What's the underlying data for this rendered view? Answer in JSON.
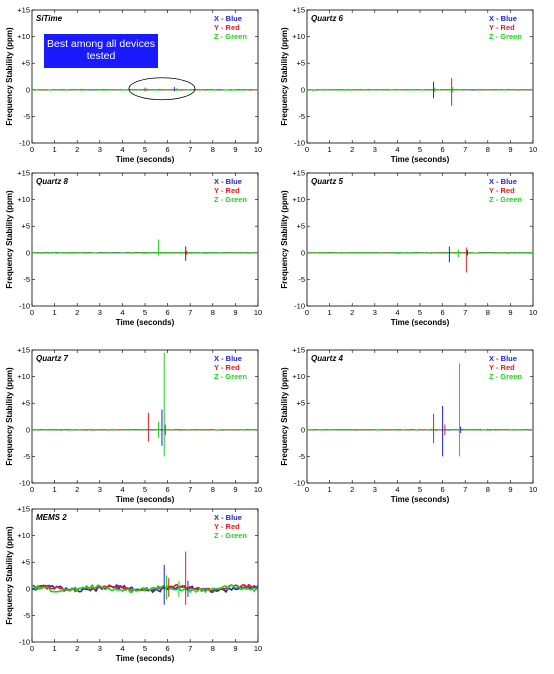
{
  "chart_data": [
    {
      "type": "line",
      "title": "SiTime",
      "xlabel": "Time (seconds)",
      "ylabel": "Frequency Stability (ppm)",
      "xlim": [
        0,
        10
      ],
      "ylim": [
        -10,
        15
      ],
      "xticks": [
        "0",
        "1",
        "2",
        "3",
        "4",
        "5",
        "6",
        "7",
        "8",
        "9",
        "10"
      ],
      "yticks": [
        "+15",
        "+10",
        "+5",
        "0",
        "-5",
        "-10"
      ],
      "legend": [
        {
          "name": "X - Blue",
          "color": "#1f1fe0"
        },
        {
          "name": "Y - Red",
          "color": "#e01f1f"
        },
        {
          "name": "Z - Green",
          "color": "#1fd21f"
        }
      ],
      "annotation": "Best among all devices tested",
      "spikes": [
        [
          5.0,
          -0.3,
          0.4,
          "#e01f1f"
        ],
        [
          5.1,
          -0.2,
          0.3,
          "#1fd21f"
        ],
        [
          6.3,
          -0.3,
          0.5,
          "#1f1fe0"
        ],
        [
          6.4,
          -0.2,
          0.3,
          "#1fd21f"
        ]
      ]
    },
    {
      "type": "line",
      "title": "Quartz 6",
      "xlabel": "Time (seconds)",
      "ylabel": "Frequency Stability (ppm)",
      "xlim": [
        0,
        10
      ],
      "ylim": [
        -10,
        15
      ],
      "xticks": [
        "0",
        "1",
        "2",
        "3",
        "4",
        "5",
        "6",
        "7",
        "8",
        "9",
        "10"
      ],
      "yticks": [
        "+15",
        "+10",
        "+5",
        "0",
        "-5",
        "-10"
      ],
      "legend": [
        {
          "name": "X - Blue",
          "color": "#1f1fe0"
        },
        {
          "name": "Y - Red",
          "color": "#e01f1f"
        },
        {
          "name": "Z - Green",
          "color": "#1fd21f"
        }
      ],
      "spikes": [
        [
          5.6,
          -1.6,
          1.5,
          "#1f1fe0"
        ],
        [
          5.65,
          -0.4,
          0.4,
          "#1fd21f"
        ],
        [
          6.4,
          -3.0,
          2.2,
          "#e01f1f"
        ],
        [
          6.45,
          -0.5,
          0.5,
          "#1fd21f"
        ]
      ]
    },
    {
      "type": "line",
      "title": "Quartz 8",
      "xlabel": "Time (seconds)",
      "ylabel": "Frequency Stability (ppm)",
      "xlim": [
        0,
        10
      ],
      "ylim": [
        -10,
        15
      ],
      "xticks": [
        "0",
        "1",
        "2",
        "3",
        "4",
        "5",
        "6",
        "7",
        "8",
        "9",
        "10"
      ],
      "yticks": [
        "+15",
        "+10",
        "+5",
        "0",
        "-5",
        "-10"
      ],
      "legend": [
        {
          "name": "X - Blue",
          "color": "#1f1fe0"
        },
        {
          "name": "Y - Red",
          "color": "#e01f1f"
        },
        {
          "name": "Z - Green",
          "color": "#1fd21f"
        }
      ],
      "spikes": [
        [
          5.6,
          -0.5,
          2.5,
          "#1fd21f"
        ],
        [
          6.8,
          -1.5,
          1.2,
          "#1f1fe0"
        ],
        [
          6.85,
          -0.4,
          0.4,
          "#e01f1f"
        ]
      ]
    },
    {
      "type": "line",
      "title": "Quartz 5",
      "xlabel": "Time (seconds)",
      "ylabel": "Frequency Stability (ppm)",
      "xlim": [
        0,
        10
      ],
      "ylim": [
        -10,
        15
      ],
      "xticks": [
        "0",
        "1",
        "2",
        "3",
        "4",
        "5",
        "6",
        "7",
        "8",
        "9",
        "10"
      ],
      "yticks": [
        "+15",
        "+10",
        "+5",
        "0",
        "-5",
        "-10"
      ],
      "legend": [
        {
          "name": "X - Blue",
          "color": "#1f1fe0"
        },
        {
          "name": "Y - Red",
          "color": "#e01f1f"
        },
        {
          "name": "Z - Green",
          "color": "#1fd21f"
        }
      ],
      "spikes": [
        [
          6.3,
          -1.8,
          1.2,
          "#1f1fe0"
        ],
        [
          6.7,
          -0.8,
          0.6,
          "#1fd21f"
        ],
        [
          7.05,
          -3.7,
          1.0,
          "#e01f1f"
        ],
        [
          7.1,
          -0.5,
          0.5,
          "#1f1fe0"
        ]
      ]
    },
    {
      "type": "line",
      "title": "Quartz 7",
      "xlabel": "Time (seconds)",
      "ylabel": "Frequency Stability (ppm)",
      "xlim": [
        0,
        10
      ],
      "ylim": [
        -10,
        15
      ],
      "xticks": [
        "0",
        "1",
        "2",
        "3",
        "4",
        "5",
        "6",
        "7",
        "8",
        "9",
        "10"
      ],
      "yticks": [
        "+15",
        "+10",
        "+5",
        "0",
        "-5",
        "-10"
      ],
      "legend": [
        {
          "name": "X - Blue",
          "color": "#1f1fe0"
        },
        {
          "name": "Y - Red",
          "color": "#e01f1f"
        },
        {
          "name": "Z - Green",
          "color": "#1fd21f"
        }
      ],
      "spikes": [
        [
          5.15,
          -2.2,
          3.2,
          "#e01f1f"
        ],
        [
          5.6,
          -1.5,
          1.5,
          "#1fd21f"
        ],
        [
          5.75,
          -3.0,
          3.8,
          "#1f1fe0"
        ],
        [
          5.85,
          -5.0,
          14.5,
          "#1fd21f"
        ],
        [
          5.9,
          -1.0,
          1.0,
          "#e01f1f"
        ]
      ]
    },
    {
      "type": "line",
      "title": "Quartz 4",
      "xlabel": "Time (seconds)",
      "ylabel": "Frequency Stability (ppm)",
      "xlim": [
        0,
        10
      ],
      "ylim": [
        -10,
        15
      ],
      "xticks": [
        "0",
        "1",
        "2",
        "3",
        "4",
        "5",
        "6",
        "7",
        "8",
        "9",
        "10"
      ],
      "yticks": [
        "+15",
        "+10",
        "+5",
        "0",
        "-5",
        "-10"
      ],
      "legend": [
        {
          "name": "X - Blue",
          "color": "#1f1fe0"
        },
        {
          "name": "Y - Red",
          "color": "#e01f1f"
        },
        {
          "name": "Z - Green",
          "color": "#1fd21f"
        }
      ],
      "spikes": [
        [
          5.6,
          -2.5,
          3.0,
          "#e01f1f"
        ],
        [
          6.0,
          -5.0,
          4.5,
          "#1f1fe0"
        ],
        [
          6.1,
          -1.0,
          1.0,
          "#e01f1f"
        ],
        [
          6.75,
          -5.0,
          12.5,
          "#1fd21f"
        ],
        [
          6.8,
          -0.6,
          0.6,
          "#1f1fe0"
        ]
      ]
    },
    {
      "type": "line",
      "title": "MEMS 2",
      "xlabel": "Time (seconds)",
      "ylabel": "Frequency Stability (ppm)",
      "xlim": [
        0,
        10
      ],
      "ylim": [
        -10,
        15
      ],
      "xticks": [
        "0",
        "1",
        "2",
        "3",
        "4",
        "5",
        "6",
        "7",
        "8",
        "9",
        "10"
      ],
      "yticks": [
        "+15",
        "+10",
        "+5",
        "0",
        "-5",
        "-10"
      ],
      "legend": [
        {
          "name": "X - Blue",
          "color": "#1f1fe0"
        },
        {
          "name": "Y - Red",
          "color": "#e01f1f"
        },
        {
          "name": "Z - Green",
          "color": "#1fd21f"
        }
      ],
      "spikes": [
        [
          5.85,
          -3.0,
          4.5,
          "#1f1fe0"
        ],
        [
          5.95,
          -2.0,
          2.5,
          "#1fd21f"
        ],
        [
          6.05,
          -1.5,
          2.0,
          "#e01f1f"
        ],
        [
          6.5,
          -1.5,
          1.5,
          "#1fd21f"
        ],
        [
          6.8,
          -3.0,
          7.0,
          "#e01f1f"
        ],
        [
          6.9,
          -1.5,
          1.5,
          "#1f1fe0"
        ]
      ],
      "noisy": true
    }
  ]
}
